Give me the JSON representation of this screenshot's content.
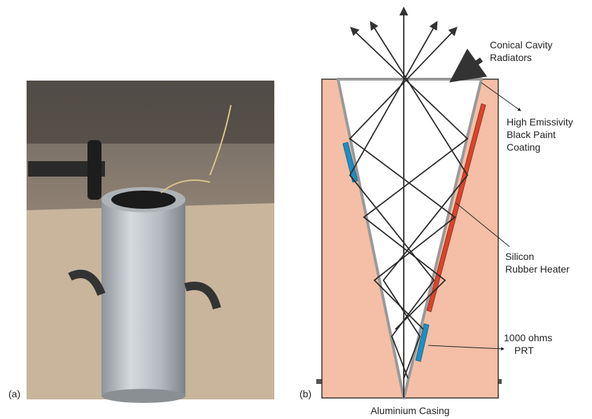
{
  "panel_a": {
    "label": "(a)"
  },
  "panel_b": {
    "label": "(b)",
    "annotations": {
      "cavity": [
        "Conical Cavity",
        "Radiators"
      ],
      "coating": [
        "High Emissivity",
        "Black Paint",
        "Coating"
      ],
      "heater": [
        "Silicon",
        "Rubber Heater"
      ],
      "prt": [
        "1000 ohms",
        "PRT"
      ],
      "casing": "Aluminium Casing"
    }
  }
}
